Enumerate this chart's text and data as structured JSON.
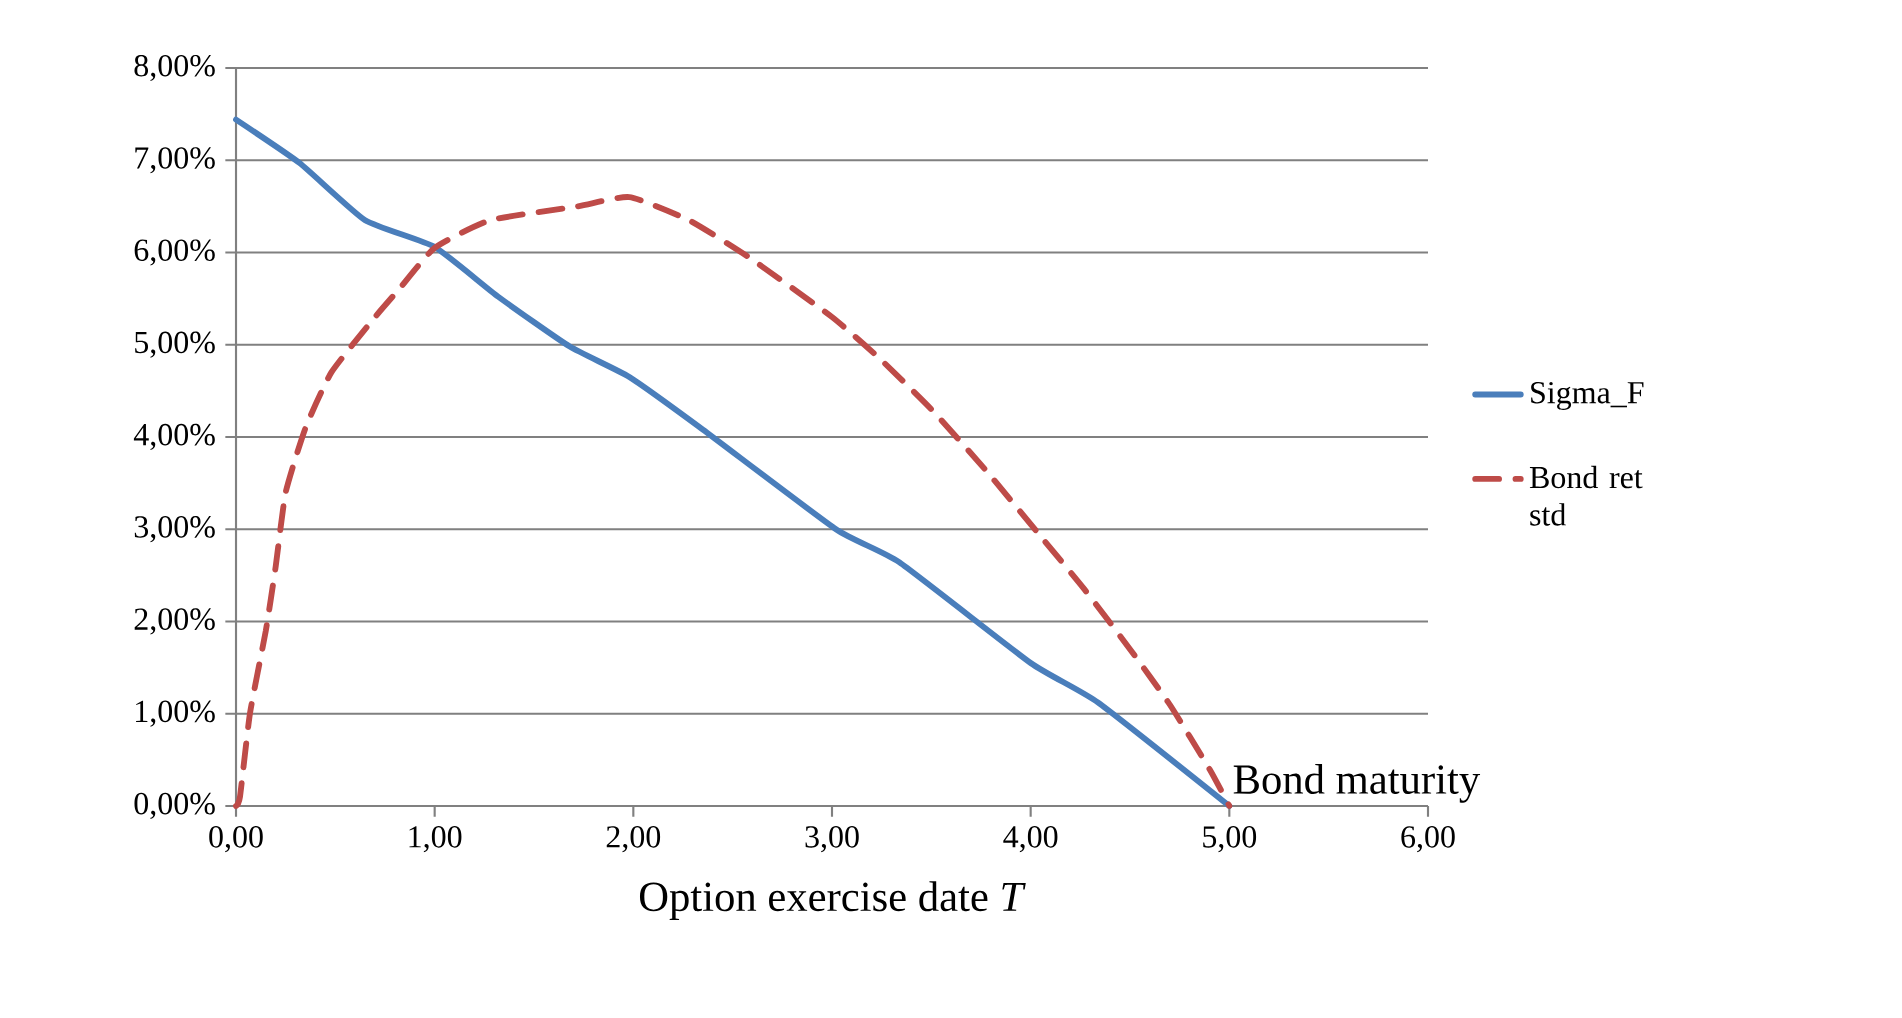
{
  "chart_data": {
    "type": "line",
    "xlabel": "Option exercise date *T*",
    "xlim": [
      0,
      6
    ],
    "xticks": [
      {
        "value": 0,
        "label": "0,00"
      },
      {
        "value": 1,
        "label": "1,00"
      },
      {
        "value": 2,
        "label": "2,00"
      },
      {
        "value": 3,
        "label": "3,00"
      },
      {
        "value": 4,
        "label": "4,00"
      },
      {
        "value": 5,
        "label": "5,00"
      },
      {
        "value": 6,
        "label": "6,00"
      }
    ],
    "ylim": [
      0,
      8
    ],
    "yticks": [
      {
        "value": 0,
        "label": "0,00%"
      },
      {
        "value": 1,
        "label": "1,00%"
      },
      {
        "value": 2,
        "label": "2,00%"
      },
      {
        "value": 3,
        "label": "3,00%"
      },
      {
        "value": 4,
        "label": "4,00%"
      },
      {
        "value": 5,
        "label": "5,00%"
      },
      {
        "value": 6,
        "label": "6,00%"
      },
      {
        "value": 7,
        "label": "7,00%"
      },
      {
        "value": 8,
        "label": "8,00%"
      }
    ],
    "grid": "y",
    "legend": "right",
    "marker": "none",
    "series": [
      {
        "name": "Sigma_F",
        "color": "#4a7ebb",
        "line_style": "solid",
        "x": [
          0,
          0.32,
          0.65,
          1.0,
          1.32,
          1.68,
          1.98,
          2.35,
          3.02,
          3.34,
          4.0,
          4.34,
          5.0
        ],
        "values": [
          7.44,
          6.97,
          6.35,
          6.06,
          5.52,
          4.98,
          4.65,
          4.08,
          3.0,
          2.64,
          1.55,
          1.12,
          0
        ]
      },
      {
        "name": "Bond ret std",
        "color": "#be4b48",
        "line_style": "dashed",
        "x": [
          0,
          0.02,
          0.07,
          0.15,
          0.2,
          0.25,
          0.35,
          0.48,
          0.7,
          0.82,
          1.0,
          1.28,
          1.72,
          1.98,
          2.28,
          2.58,
          3.0,
          3.24,
          3.5,
          3.77,
          4.04,
          4.27,
          4.5,
          4.7,
          4.9,
          5.0
        ],
        "values": [
          0,
          0.1,
          1.0,
          1.9,
          2.6,
          3.4,
          4.1,
          4.7,
          5.3,
          5.6,
          6.05,
          6.35,
          6.5,
          6.6,
          6.35,
          5.95,
          5.3,
          4.85,
          4.3,
          3.65,
          2.95,
          2.35,
          1.7,
          1.1,
          0.4,
          0
        ]
      }
    ],
    "annotations": [
      {
        "text": "Bond maturity",
        "x": 5,
        "y": 0
      }
    ]
  }
}
